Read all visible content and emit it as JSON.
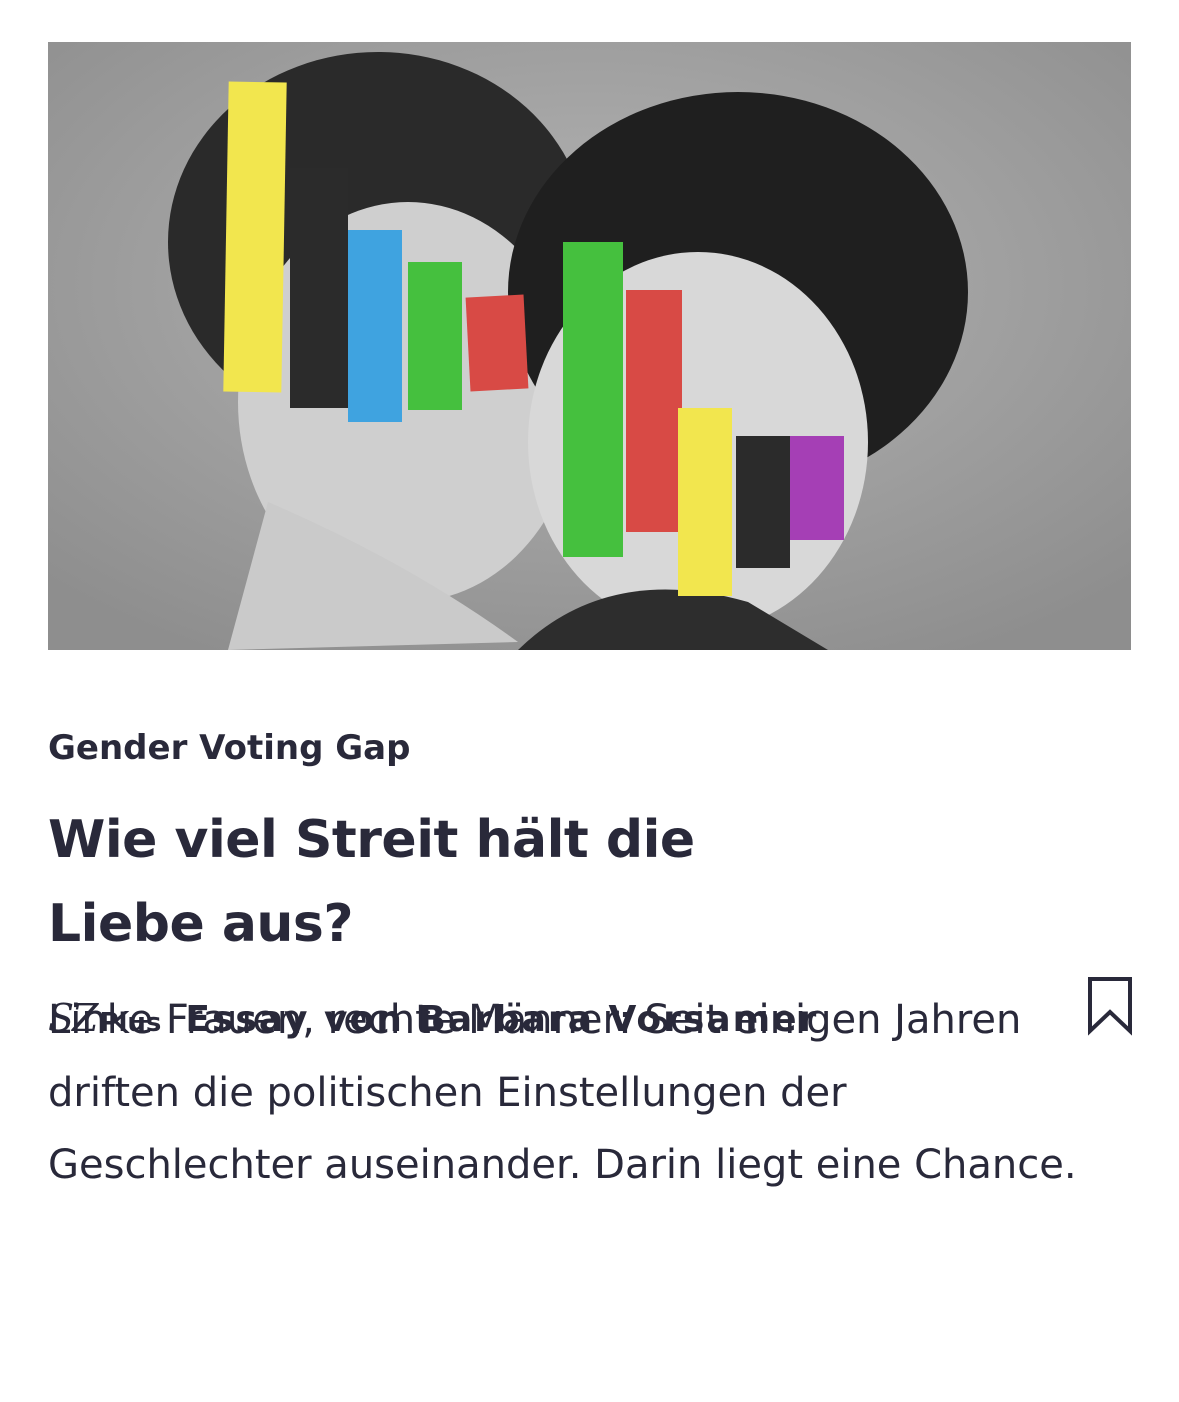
{
  "kicker": "Gender Voting Gap",
  "headline": "Wie viel Streit hält die Liebe aus?",
  "teaser": "Linke Frauen, rechte Männer: Seit einigen Jahren driften die politischen Einstellungen der Geschlechter auseinander. Darin liegt eine Chance.",
  "brand": {
    "name": "SZ",
    "tier": "Plus"
  },
  "byline": "Essay von Barbara Vorsamer"
}
